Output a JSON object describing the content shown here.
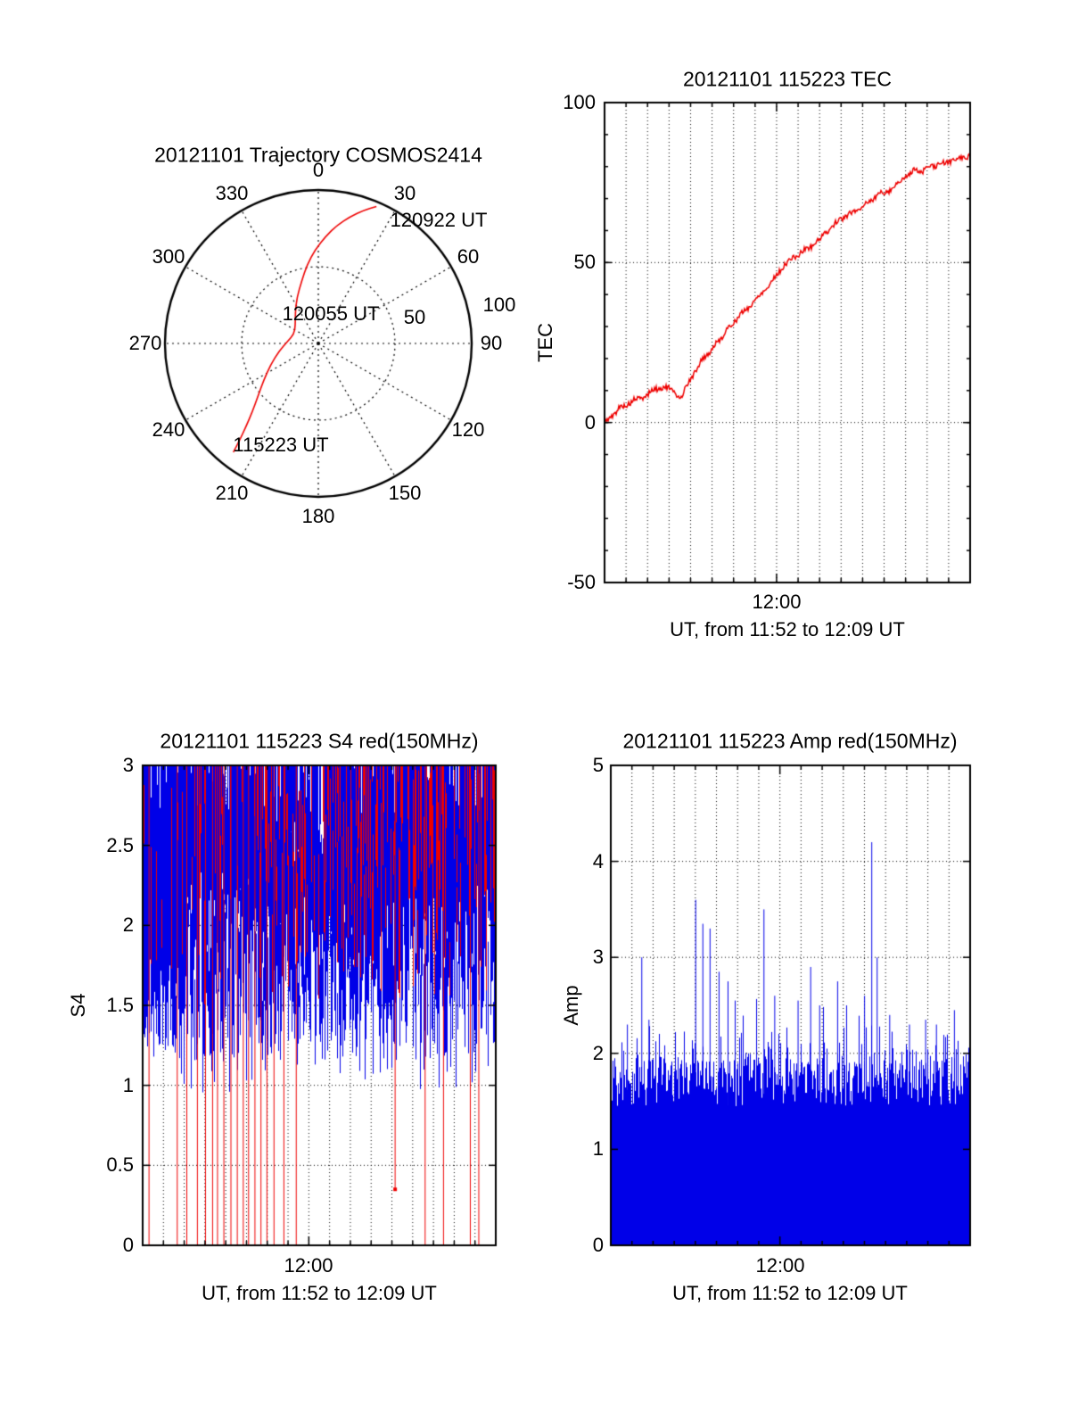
{
  "colors": {
    "red": "#ee0000",
    "blue": "#0000e8",
    "axis": "#000000",
    "background": "#ffffff"
  },
  "chart_data": [
    {
      "type": "scatter",
      "subtype": "polar-sky-trajectory",
      "title": "20121101 Trajectory COSMOS2414",
      "azimuth_ticks_deg": [
        0,
        30,
        60,
        90,
        120,
        150,
        180,
        210,
        240,
        270,
        300,
        330
      ],
      "radial_max": 100,
      "radial_ticks": [
        {
          "label": "50",
          "value": 50
        },
        {
          "label": "100",
          "value": 100
        }
      ],
      "line_color": "#ee0000",
      "trajectory_az_r": [
        [
          218,
          90
        ],
        [
          219,
          82
        ],
        [
          221,
          72
        ],
        [
          224,
          62
        ],
        [
          229,
          52
        ],
        [
          236,
          43
        ],
        [
          246,
          34
        ],
        [
          259,
          26
        ],
        [
          274,
          20
        ],
        [
          291,
          17
        ],
        [
          308,
          19
        ],
        [
          323,
          25
        ],
        [
          335,
          33
        ],
        [
          345,
          42
        ],
        [
          352,
          52
        ],
        [
          358,
          61
        ],
        [
          4,
          70
        ],
        [
          9,
          78
        ],
        [
          14,
          85
        ],
        [
          19,
          92
        ],
        [
          23,
          97
        ]
      ],
      "annotations": [
        {
          "text": "120922 UT",
          "x": 492,
          "y": 247
        },
        {
          "text": "120055 UT",
          "x": 371,
          "y": 352
        },
        {
          "text": "115223 UT",
          "x": 315,
          "y": 499
        }
      ]
    },
    {
      "type": "line",
      "title": "20121101 115223 TEC",
      "ylabel": "TEC",
      "xlabel": "UT, from 11:52 to 12:09 UT",
      "xtick_label": "12:00",
      "ylim": [
        -50,
        100
      ],
      "yticks": [
        {
          "label": "100",
          "value": 100
        },
        {
          "label": "50",
          "value": 50
        },
        {
          "label": "0",
          "value": 0
        },
        {
          "label": "-50",
          "value": -50
        }
      ],
      "x_minutes_total": 17,
      "x_major_minute": 8,
      "grid_h_values": [
        0,
        50
      ],
      "line_color": "#ee0000",
      "points_t_tec": [
        [
          0.0,
          0
        ],
        [
          0.02,
          2
        ],
        [
          0.04,
          4.5
        ],
        [
          0.06,
          5.5
        ],
        [
          0.08,
          7
        ],
        [
          0.1,
          7.5
        ],
        [
          0.12,
          9
        ],
        [
          0.14,
          10.5
        ],
        [
          0.16,
          11
        ],
        [
          0.18,
          10.5
        ],
        [
          0.2,
          8.5
        ],
        [
          0.21,
          7.5
        ],
        [
          0.225,
          12
        ],
        [
          0.25,
          16
        ],
        [
          0.27,
          20.5
        ],
        [
          0.29,
          22
        ],
        [
          0.31,
          25.5
        ],
        [
          0.33,
          28
        ],
        [
          0.35,
          31
        ],
        [
          0.37,
          33.5
        ],
        [
          0.39,
          35.5
        ],
        [
          0.41,
          38
        ],
        [
          0.43,
          40.5
        ],
        [
          0.45,
          43
        ],
        [
          0.47,
          46
        ],
        [
          0.49,
          49
        ],
        [
          0.51,
          51
        ],
        [
          0.53,
          52.5
        ],
        [
          0.55,
          54
        ],
        [
          0.57,
          55.5
        ],
        [
          0.59,
          57.5
        ],
        [
          0.61,
          60
        ],
        [
          0.63,
          62
        ],
        [
          0.65,
          64
        ],
        [
          0.67,
          65
        ],
        [
          0.69,
          66.5
        ],
        [
          0.71,
          68
        ],
        [
          0.73,
          69.5
        ],
        [
          0.75,
          71.5
        ],
        [
          0.77,
          72
        ],
        [
          0.79,
          73.5
        ],
        [
          0.81,
          75.5
        ],
        [
          0.83,
          77.5
        ],
        [
          0.85,
          79
        ],
        [
          0.87,
          78.5
        ],
        [
          0.89,
          80
        ],
        [
          0.91,
          80.5
        ],
        [
          0.93,
          81
        ],
        [
          0.95,
          82
        ],
        [
          0.97,
          82.5
        ],
        [
          1.0,
          83.5
        ]
      ]
    },
    {
      "type": "line",
      "subtype": "dense-scintillation-noise",
      "title": "20121101 115223 S4 red(150MHz)",
      "ylabel": "S4",
      "xlabel": "UT, from 11:52 to 12:09 UT",
      "xtick_label": "12:00",
      "ylim": [
        0,
        3
      ],
      "yticks": [
        {
          "label": "0",
          "value": 0
        },
        {
          "label": "0.5",
          "value": 0.5
        },
        {
          "label": "1",
          "value": 1
        },
        {
          "label": "1.5",
          "value": 1.5
        },
        {
          "label": "2",
          "value": 2
        },
        {
          "label": "2.5",
          "value": 2.5
        },
        {
          "label": "3",
          "value": 3
        }
      ],
      "x_minutes_total": 17,
      "x_major_minute": 8,
      "grid_h_values": [
        0.5,
        1,
        1.5,
        2,
        2.5
      ],
      "series": [
        {
          "name": "S4 (blue)",
          "color": "#0000e8",
          "band_min": 1.2,
          "band_max": 3
        },
        {
          "name": "S4 red(150MHz)",
          "color": "#ee0000",
          "band_min": 1.5,
          "band_max": 3
        }
      ],
      "red_dropout_x": [
        0.018,
        0.098,
        0.125,
        0.155,
        0.178,
        0.198,
        0.212,
        0.23,
        0.25,
        0.268,
        0.285,
        0.3,
        0.318,
        0.335,
        0.352,
        0.372,
        0.4,
        0.435,
        0.8,
        0.852,
        0.928,
        0.952
      ],
      "red_partial_dropouts": [
        {
          "x": 0.715,
          "ymin": 0.35
        }
      ],
      "noise_seed": 1234
    },
    {
      "type": "area",
      "subtype": "dense-amplitude-noise",
      "title": "20121101 115223 Amp red(150MHz)",
      "ylabel": "Amp",
      "xlabel": "UT, from 11:52 to 12:09 UT",
      "xtick_label": "12:00",
      "ylim": [
        0,
        5
      ],
      "yticks": [
        {
          "label": "0",
          "value": 0
        },
        {
          "label": "1",
          "value": 1
        },
        {
          "label": "2",
          "value": 2
        },
        {
          "label": "3",
          "value": 3
        },
        {
          "label": "4",
          "value": 4
        },
        {
          "label": "5",
          "value": 5
        }
      ],
      "x_minutes_total": 17,
      "x_major_minute": 8,
      "grid_h_values": [
        1,
        2,
        3,
        4
      ],
      "fill_color": "#0000e8",
      "base_band": [
        1.45,
        1.95
      ],
      "spikes": [
        {
          "x": 0.045,
          "v": 2.3
        },
        {
          "x": 0.085,
          "v": 3.0
        },
        {
          "x": 0.105,
          "v": 2.35
        },
        {
          "x": 0.235,
          "v": 3.6
        },
        {
          "x": 0.255,
          "v": 3.35
        },
        {
          "x": 0.275,
          "v": 3.3
        },
        {
          "x": 0.3,
          "v": 2.85
        },
        {
          "x": 0.325,
          "v": 2.75
        },
        {
          "x": 0.345,
          "v": 2.55
        },
        {
          "x": 0.425,
          "v": 3.5
        },
        {
          "x": 0.455,
          "v": 2.6
        },
        {
          "x": 0.52,
          "v": 2.55
        },
        {
          "x": 0.555,
          "v": 2.9
        },
        {
          "x": 0.58,
          "v": 2.5
        },
        {
          "x": 0.63,
          "v": 2.75
        },
        {
          "x": 0.655,
          "v": 2.5
        },
        {
          "x": 0.705,
          "v": 2.6
        },
        {
          "x": 0.725,
          "v": 4.2
        },
        {
          "x": 0.74,
          "v": 3.0
        },
        {
          "x": 0.775,
          "v": 2.4
        },
        {
          "x": 0.83,
          "v": 2.3
        },
        {
          "x": 0.875,
          "v": 2.35
        },
        {
          "x": 0.905,
          "v": 2.3
        },
        {
          "x": 0.955,
          "v": 2.45
        }
      ],
      "noise_seed": 77
    }
  ]
}
